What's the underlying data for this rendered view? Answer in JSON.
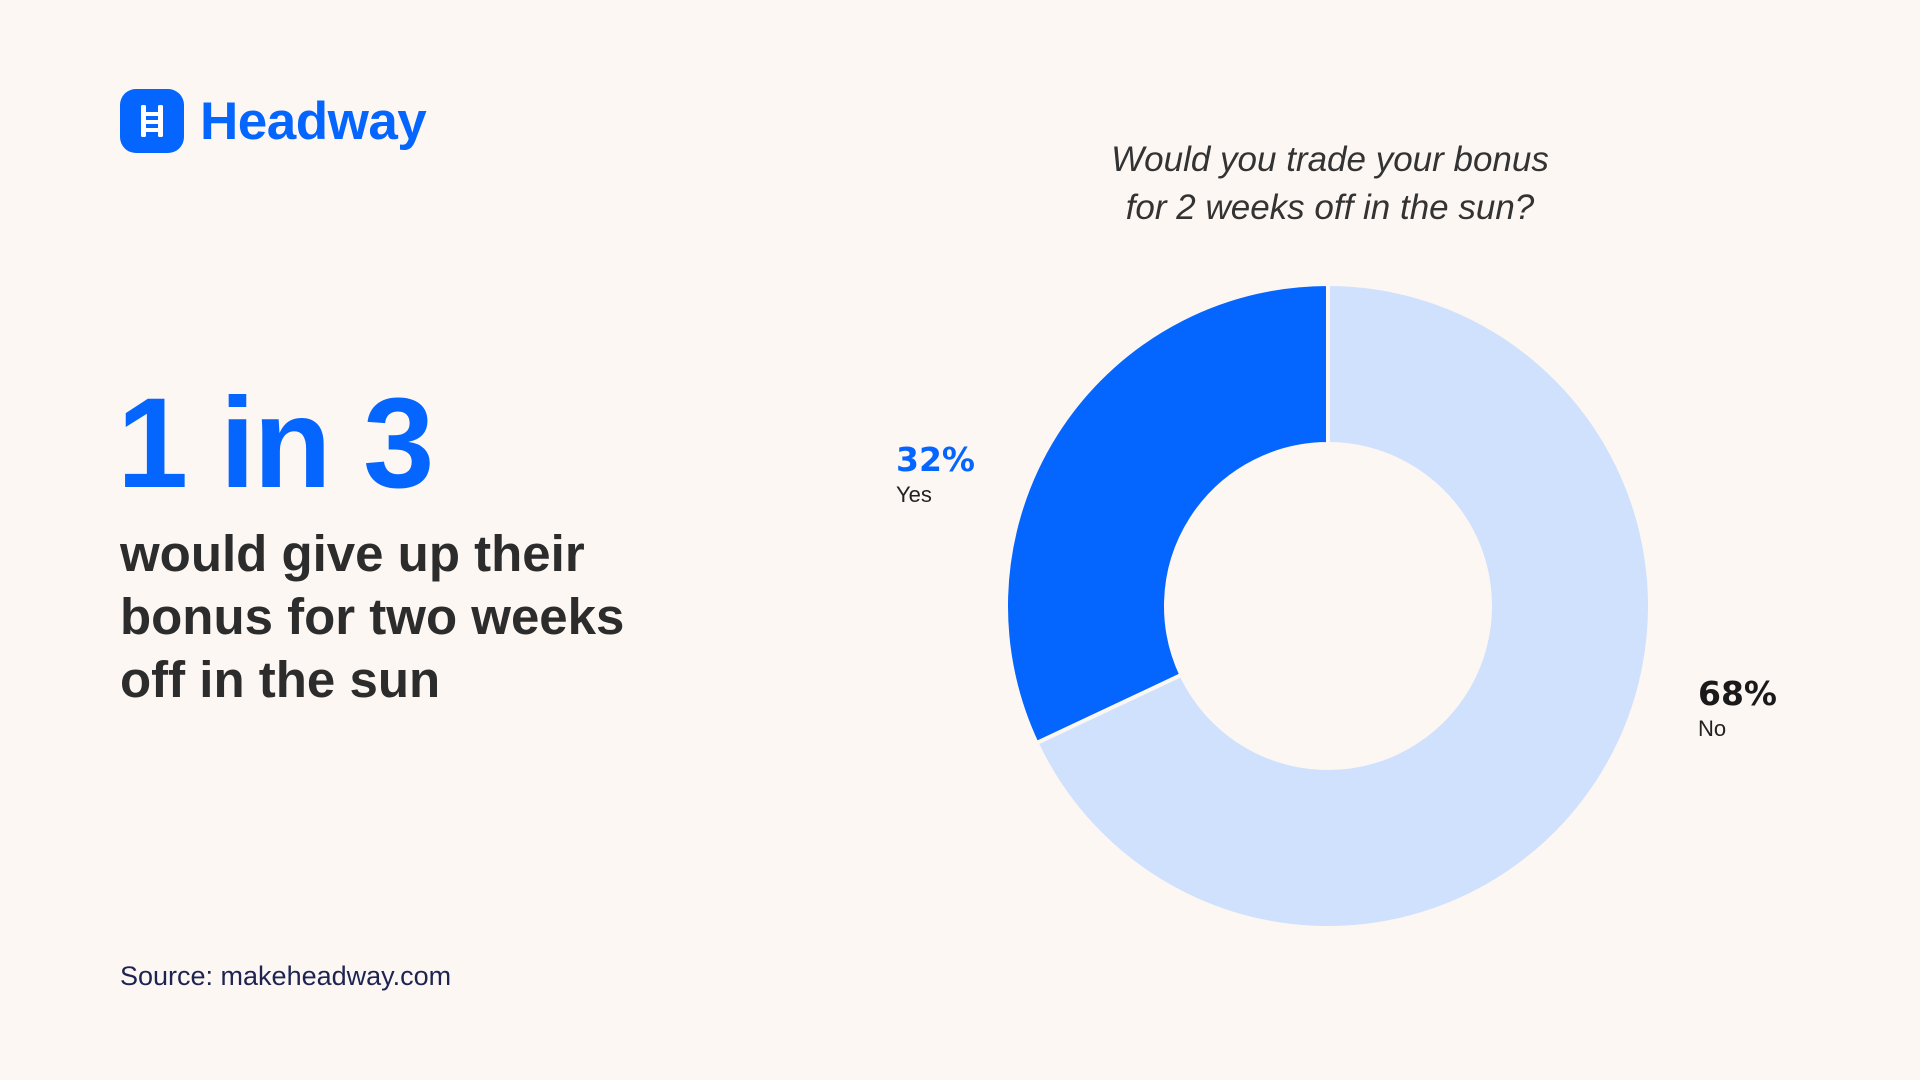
{
  "brand": {
    "name": "Headway",
    "color": "#0565ff"
  },
  "headline": {
    "stat": "1 in 3",
    "text": "would give up their bonus for two weeks off in the sun"
  },
  "source": "Source: makeheadway.com",
  "chart_data": {
    "type": "pie",
    "variant": "donut",
    "title": "Would you trade your bonus for 2 weeks off in the sun?",
    "title_lines": [
      "Would you trade your bonus",
      "for 2 weeks off in the sun?"
    ],
    "unit": "%",
    "slices": [
      {
        "label": "Yes",
        "value": 32,
        "display": "32%",
        "color": "#0565ff",
        "label_color": "#0565ff"
      },
      {
        "label": "No",
        "value": 68,
        "display": "68%",
        "color": "#cfe1fd",
        "label_color": "#1a1a1a"
      }
    ]
  }
}
